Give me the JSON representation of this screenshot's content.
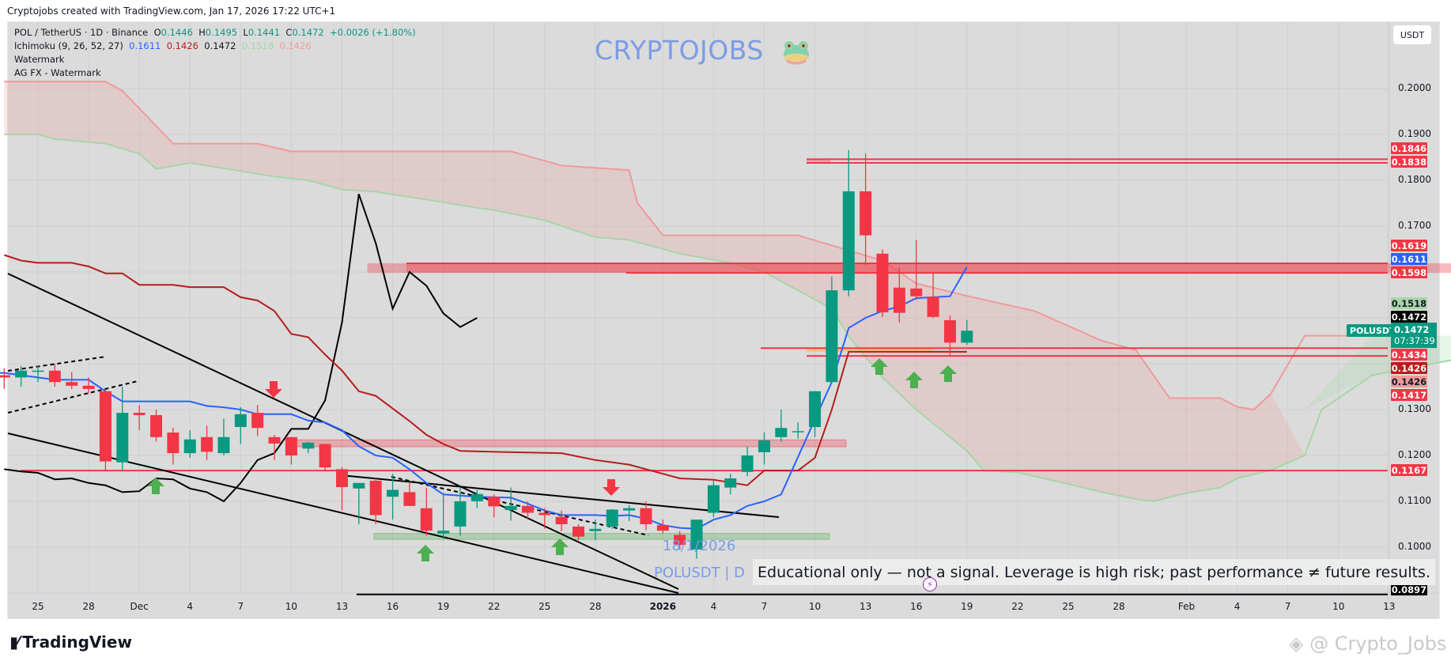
{
  "header": {
    "credit": "Cryptojobs created with TradingView.com, Jan 17, 2026 17:22 UTC+1"
  },
  "legend": {
    "symbol": "POL / TetherUS · 1D · Binance",
    "o_label": "O",
    "o": "0.1446",
    "h_label": "H",
    "h": "0.1495",
    "l_label": "L",
    "l": "0.1441",
    "c_label": "C",
    "c": "0.1472",
    "change": "+0.0026 (+1.80%)",
    "ichimoku_label": "Ichimoku (9, 26, 52, 27)",
    "ichimoku_values": [
      "0.1611",
      "0.1426",
      "0.1472",
      "0.1518",
      "0.1426"
    ],
    "watermark_1": "Watermark",
    "watermark_2": "AG FX - Watermark"
  },
  "watermark": {
    "brand": "CRYPTOJOBS",
    "date": "18/1/2026",
    "pair": "POLUSDT | D",
    "disclaimer": "Educational only — not a signal. Leverage is high risk; past performance ≠ future results."
  },
  "currency_button": "USDT",
  "symbol_tag": "POLUSDT",
  "current_price": {
    "value": "0.1472",
    "countdown": "07:37:39"
  },
  "footer": {
    "logo": "TradingView",
    "credit": "@ Crypto_Jobs"
  },
  "colors": {
    "up": "#089981",
    "down": "#f23645",
    "tenkan": "#2962ff",
    "kijun": "#b71c1c",
    "span_a": "#a5d6a7",
    "span_b": "#ef9a9a",
    "cloud_bear": "rgba(239,154,154,0.25)",
    "cloud_bull": "rgba(165,214,167,0.25)",
    "background": "#dbdbdb",
    "watermark": "#7b9be6"
  },
  "chart_data": {
    "type": "candlestick",
    "title": "POL / TetherUS · 1D · Binance",
    "xlabel": "",
    "ylabel": "USDT",
    "ylim": [
      0.0897,
      0.208
    ],
    "grid": true,
    "y_ticks": [
      "0.2000",
      "0.1900",
      "0.1800",
      "0.1700",
      "0.1300",
      "0.1200",
      "0.1100",
      "0.1000"
    ],
    "x_ticks": [
      {
        "label": "25",
        "day": 0
      },
      {
        "label": "28",
        "day": 3
      },
      {
        "label": "Dec",
        "day": 6
      },
      {
        "label": "4",
        "day": 9
      },
      {
        "label": "7",
        "day": 12
      },
      {
        "label": "10",
        "day": 15
      },
      {
        "label": "13",
        "day": 18
      },
      {
        "label": "16",
        "day": 21
      },
      {
        "label": "19",
        "day": 24
      },
      {
        "label": "22",
        "day": 27
      },
      {
        "label": "25",
        "day": 30
      },
      {
        "label": "28",
        "day": 33
      },
      {
        "label": "2026",
        "day": 37,
        "bold": true
      },
      {
        "label": "4",
        "day": 40
      },
      {
        "label": "7",
        "day": 43
      },
      {
        "label": "10",
        "day": 46
      },
      {
        "label": "13",
        "day": 49
      },
      {
        "label": "16",
        "day": 52
      },
      {
        "label": "19",
        "day": 55
      },
      {
        "label": "22",
        "day": 58
      },
      {
        "label": "25",
        "day": 61
      },
      {
        "label": "28",
        "day": 64
      },
      {
        "label": "Feb",
        "day": 68
      },
      {
        "label": "4",
        "day": 71
      },
      {
        "label": "7",
        "day": 74
      },
      {
        "label": "10",
        "day": 77
      },
      {
        "label": "13",
        "day": 80
      }
    ],
    "price_labels": [
      {
        "value": "0.1846",
        "color": "#f23645",
        "text": "#ffffff"
      },
      {
        "value": "0.1838",
        "color": "#f23645",
        "text": "#ffffff"
      },
      {
        "value": "0.1619",
        "color": "#f23645",
        "text": "#ffffff"
      },
      {
        "value": "0.1611",
        "color": "#2962ff",
        "text": "#ffffff"
      },
      {
        "value": "0.1598",
        "color": "#f23645",
        "text": "#ffffff"
      },
      {
        "value": "0.1518",
        "color": "#a5d6a7",
        "text": "#131722"
      },
      {
        "value": "0.1472",
        "color": "#000000",
        "text": "#ffffff"
      },
      {
        "value": "0.1434",
        "color": "#f23645",
        "text": "#ffffff"
      },
      {
        "value": "0.1426",
        "color": "#b71c1c",
        "text": "#ffffff"
      },
      {
        "value": "0.1426",
        "color": "#ef9a9a",
        "text": "#131722"
      },
      {
        "value": "0.1417",
        "color": "#f23645",
        "text": "#ffffff"
      },
      {
        "value": "0.1167",
        "color": "#f23645",
        "text": "#ffffff"
      },
      {
        "value": "0.0897",
        "color": "#000000",
        "text": "#ffffff"
      }
    ],
    "candles": [
      {
        "day": -4,
        "o": 0.1363,
        "h": 0.139,
        "l": 0.133,
        "c": 0.1375
      },
      {
        "day": -3,
        "o": 0.1355,
        "h": 0.1395,
        "l": 0.133,
        "c": 0.138
      },
      {
        "day": -2,
        "o": 0.1375,
        "h": 0.139,
        "l": 0.1345,
        "c": 0.137
      },
      {
        "day": -1,
        "o": 0.137,
        "h": 0.1395,
        "l": 0.135,
        "c": 0.1385
      },
      {
        "day": 0,
        "o": 0.1385,
        "h": 0.1395,
        "l": 0.136,
        "c": 0.1385
      },
      {
        "day": 1,
        "o": 0.1385,
        "h": 0.14,
        "l": 0.135,
        "c": 0.136
      },
      {
        "day": 2,
        "o": 0.136,
        "h": 0.1382,
        "l": 0.1345,
        "c": 0.1352
      },
      {
        "day": 3,
        "o": 0.1352,
        "h": 0.137,
        "l": 0.1335,
        "c": 0.1345
      },
      {
        "day": 4,
        "o": 0.134,
        "h": 0.1342,
        "l": 0.1167,
        "c": 0.1187
      },
      {
        "day": 5,
        "o": 0.1185,
        "h": 0.135,
        "l": 0.1165,
        "c": 0.1293
      },
      {
        "day": 6,
        "o": 0.1293,
        "h": 0.131,
        "l": 0.1255,
        "c": 0.1288
      },
      {
        "day": 7,
        "o": 0.1288,
        "h": 0.13,
        "l": 0.123,
        "c": 0.124
      },
      {
        "day": 8,
        "o": 0.125,
        "h": 0.126,
        "l": 0.118,
        "c": 0.1205
      },
      {
        "day": 9,
        "o": 0.1205,
        "h": 0.1255,
        "l": 0.1195,
        "c": 0.1235
      },
      {
        "day": 10,
        "o": 0.124,
        "h": 0.1265,
        "l": 0.119,
        "c": 0.1208
      },
      {
        "day": 11,
        "o": 0.1205,
        "h": 0.128,
        "l": 0.12,
        "c": 0.124
      },
      {
        "day": 12,
        "o": 0.1262,
        "h": 0.1305,
        "l": 0.1225,
        "c": 0.129
      },
      {
        "day": 13,
        "o": 0.1293,
        "h": 0.131,
        "l": 0.1242,
        "c": 0.126
      },
      {
        "day": 14,
        "o": 0.124,
        "h": 0.1245,
        "l": 0.119,
        "c": 0.1226
      },
      {
        "day": 15,
        "o": 0.124,
        "h": 0.124,
        "l": 0.118,
        "c": 0.12
      },
      {
        "day": 16,
        "o": 0.1215,
        "h": 0.123,
        "l": 0.1205,
        "c": 0.1228
      },
      {
        "day": 17,
        "o": 0.1225,
        "h": 0.1225,
        "l": 0.1165,
        "c": 0.1174
      },
      {
        "day": 18,
        "o": 0.117,
        "h": 0.1175,
        "l": 0.108,
        "c": 0.1131
      },
      {
        "day": 19,
        "o": 0.1128,
        "h": 0.1135,
        "l": 0.105,
        "c": 0.114
      },
      {
        "day": 20,
        "o": 0.1145,
        "h": 0.115,
        "l": 0.105,
        "c": 0.107
      },
      {
        "day": 21,
        "o": 0.111,
        "h": 0.116,
        "l": 0.106,
        "c": 0.1125
      },
      {
        "day": 22,
        "o": 0.112,
        "h": 0.114,
        "l": 0.109,
        "c": 0.109
      },
      {
        "day": 23,
        "o": 0.1085,
        "h": 0.113,
        "l": 0.1025,
        "c": 0.1036
      },
      {
        "day": 24,
        "o": 0.103,
        "h": 0.1118,
        "l": 0.1018,
        "c": 0.1036
      },
      {
        "day": 25,
        "o": 0.1045,
        "h": 0.113,
        "l": 0.1025,
        "c": 0.11
      },
      {
        "day": 26,
        "o": 0.11,
        "h": 0.1125,
        "l": 0.1085,
        "c": 0.1116
      },
      {
        "day": 27,
        "o": 0.111,
        "h": 0.1115,
        "l": 0.1065,
        "c": 0.1089
      },
      {
        "day": 28,
        "o": 0.1081,
        "h": 0.113,
        "l": 0.1058,
        "c": 0.109
      },
      {
        "day": 29,
        "o": 0.109,
        "h": 0.11,
        "l": 0.106,
        "c": 0.1075
      },
      {
        "day": 30,
        "o": 0.1075,
        "h": 0.1085,
        "l": 0.104,
        "c": 0.107
      },
      {
        "day": 31,
        "o": 0.1066,
        "h": 0.108,
        "l": 0.1035,
        "c": 0.105
      },
      {
        "day": 32,
        "o": 0.1045,
        "h": 0.105,
        "l": 0.1015,
        "c": 0.1023
      },
      {
        "day": 33,
        "o": 0.1035,
        "h": 0.106,
        "l": 0.1015,
        "c": 0.104
      },
      {
        "day": 34,
        "o": 0.1045,
        "h": 0.1083,
        "l": 0.104,
        "c": 0.1082
      },
      {
        "day": 35,
        "o": 0.108,
        "h": 0.1092,
        "l": 0.1057,
        "c": 0.1085
      },
      {
        "day": 36,
        "o": 0.1085,
        "h": 0.11,
        "l": 0.1037,
        "c": 0.105
      },
      {
        "day": 37,
        "o": 0.1048,
        "h": 0.106,
        "l": 0.103,
        "c": 0.1036
      },
      {
        "day": 38,
        "o": 0.1027,
        "h": 0.1035,
        "l": 0.0995,
        "c": 0.1005
      },
      {
        "day": 39,
        "o": 0.0995,
        "h": 0.106,
        "l": 0.0975,
        "c": 0.106
      },
      {
        "day": 40,
        "o": 0.1075,
        "h": 0.1145,
        "l": 0.1065,
        "c": 0.1135
      },
      {
        "day": 41,
        "o": 0.113,
        "h": 0.116,
        "l": 0.1115,
        "c": 0.115
      },
      {
        "day": 42,
        "o": 0.1164,
        "h": 0.122,
        "l": 0.1155,
        "c": 0.12
      },
      {
        "day": 43,
        "o": 0.1207,
        "h": 0.125,
        "l": 0.118,
        "c": 0.1233
      },
      {
        "day": 44,
        "o": 0.124,
        "h": 0.13,
        "l": 0.123,
        "c": 0.126
      },
      {
        "day": 45,
        "o": 0.1253,
        "h": 0.1272,
        "l": 0.1237,
        "c": 0.1253
      },
      {
        "day": 46,
        "o": 0.1262,
        "h": 0.134,
        "l": 0.124,
        "c": 0.134
      },
      {
        "day": 47,
        "o": 0.136,
        "h": 0.159,
        "l": 0.136,
        "c": 0.156
      },
      {
        "day": 48,
        "o": 0.156,
        "h": 0.1866,
        "l": 0.1547,
        "c": 0.1776
      },
      {
        "day": 49,
        "o": 0.1776,
        "h": 0.1858,
        "l": 0.1615,
        "c": 0.168
      },
      {
        "day": 50,
        "o": 0.164,
        "h": 0.1649,
        "l": 0.1502,
        "c": 0.1512
      },
      {
        "day": 51,
        "o": 0.1566,
        "h": 0.161,
        "l": 0.149,
        "c": 0.1511
      },
      {
        "day": 52,
        "o": 0.1564,
        "h": 0.167,
        "l": 0.1539,
        "c": 0.1547
      },
      {
        "day": 53,
        "o": 0.1546,
        "h": 0.16,
        "l": 0.15,
        "c": 0.1502
      },
      {
        "day": 54,
        "o": 0.1495,
        "h": 0.1505,
        "l": 0.1417,
        "c": 0.1446
      },
      {
        "day": 55,
        "o": 0.1446,
        "h": 0.1495,
        "l": 0.1441,
        "c": 0.1472
      }
    ]
  }
}
